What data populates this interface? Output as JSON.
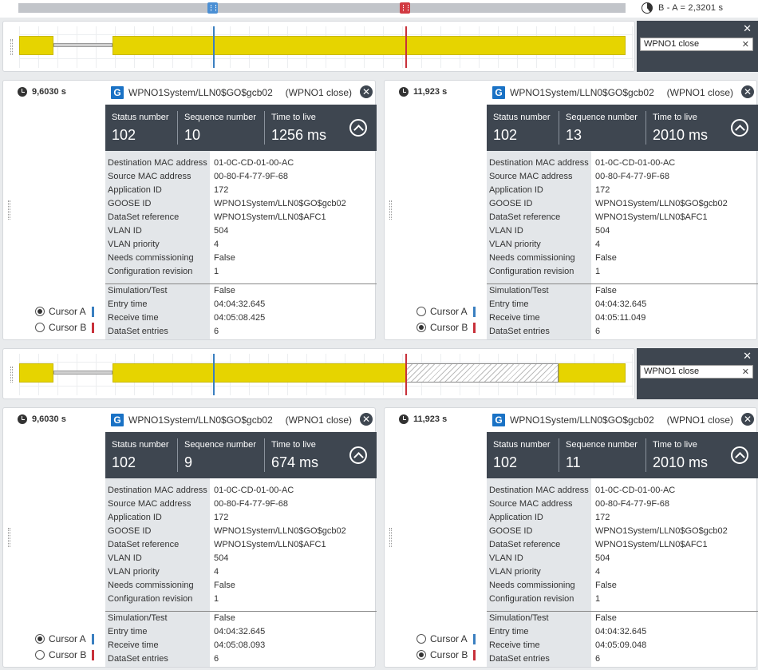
{
  "header": {
    "delta_label": "B - A =  2,3201 s"
  },
  "strips": [
    {
      "filter_text": "WPNO1 close"
    },
    {
      "filter_text": "WPNO1 close"
    }
  ],
  "labels": {
    "status_number": "Status number",
    "sequence_number": "Sequence number",
    "time_to_live": "Time to live",
    "cursor_a": "Cursor A",
    "cursor_b": "Cursor B",
    "g_icon": "G"
  },
  "field_keys": [
    "Destination MAC address",
    "Source MAC address",
    "Application ID",
    "GOOSE ID",
    "DataSet reference",
    "VLAN ID",
    "VLAN priority",
    "Needs commissioning",
    "Configuration revision"
  ],
  "field_keys2": [
    "Simulation/Test",
    "Entry time",
    "Receive time",
    "DataSet entries"
  ],
  "panels": [
    {
      "time": "9,6030 s",
      "title": "WPNO1System/LLN0$GO$gcb02",
      "filter": "(WPNO1 close)",
      "status": "102",
      "sequence": "10",
      "ttl": "1256 ms",
      "fields": [
        "01-0C-CD-01-00-AC",
        "00-80-F4-77-9F-68",
        "172",
        "WPNO1System/LLN0$GO$gcb02",
        "WPNO1System/LLN0$AFC1",
        "504",
        "4",
        "False",
        "1"
      ],
      "fields2": [
        "False",
        "04:04:32.645",
        "04:05:08.425",
        "6"
      ],
      "selected": "A"
    },
    {
      "time": "11,923 s",
      "title": "WPNO1System/LLN0$GO$gcb02",
      "filter": "(WPNO1 close)",
      "status": "102",
      "sequence": "13",
      "ttl": "2010 ms",
      "fields": [
        "01-0C-CD-01-00-AC",
        "00-80-F4-77-9F-68",
        "172",
        "WPNO1System/LLN0$GO$gcb02",
        "WPNO1System/LLN0$AFC1",
        "504",
        "4",
        "False",
        "1"
      ],
      "fields2": [
        "False",
        "04:04:32.645",
        "04:05:11.049",
        "6"
      ],
      "selected": "B"
    },
    {
      "time": "9,6030 s",
      "title": "WPNO1System/LLN0$GO$gcb02",
      "filter": "(WPNO1 close)",
      "status": "102",
      "sequence": "9",
      "ttl": "674 ms",
      "fields": [
        "01-0C-CD-01-00-AC",
        "00-80-F4-77-9F-68",
        "172",
        "WPNO1System/LLN0$GO$gcb02",
        "WPNO1System/LLN0$AFC1",
        "504",
        "4",
        "False",
        "1"
      ],
      "fields2": [
        "False",
        "04:04:32.645",
        "04:05:08.093",
        "6"
      ],
      "selected": "A"
    },
    {
      "time": "11,923 s",
      "title": "WPNO1System/LLN0$GO$gcb02",
      "filter": "(WPNO1 close)",
      "status": "102",
      "sequence": "11",
      "ttl": "2010 ms",
      "fields": [
        "01-0C-CD-01-00-AC",
        "00-80-F4-77-9F-68",
        "172",
        "WPNO1System/LLN0$GO$gcb02",
        "WPNO1System/LLN0$AFC1",
        "504",
        "4",
        "False",
        "1"
      ],
      "fields2": [
        "False",
        "04:04:32.645",
        "04:05:09.048",
        "6"
      ],
      "selected": "B"
    }
  ],
  "colors": {
    "cursor_a": "#3a7fc0",
    "cursor_b": "#c8303a",
    "signal": "#e6d400",
    "dark": "#3e4650"
  }
}
